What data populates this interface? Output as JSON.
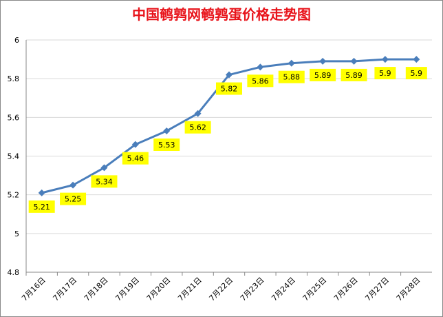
{
  "chart_data": {
    "type": "line",
    "title": "中国鹌鹑网鹌鹑蛋价格走势图",
    "categories": [
      "7月16日",
      "7月17日",
      "7月18日",
      "7月19日",
      "7月20日",
      "7月21日",
      "7月22日",
      "7月23日",
      "7月24日",
      "7月25日",
      "7月26日",
      "7月27日",
      "7月28日"
    ],
    "series": [
      {
        "color": "#4a7ebb",
        "values": [
          5.21,
          5.25,
          5.34,
          5.46,
          5.53,
          5.62,
          5.82,
          5.86,
          5.88,
          5.89,
          5.89,
          5.9,
          5.9
        ]
      }
    ],
    "ylim": [
      4.8,
      6
    ],
    "yticks": [
      4.8,
      5,
      5.2,
      5.4,
      5.6,
      5.8,
      6
    ],
    "grid": true,
    "label_color": "#ffff00"
  }
}
